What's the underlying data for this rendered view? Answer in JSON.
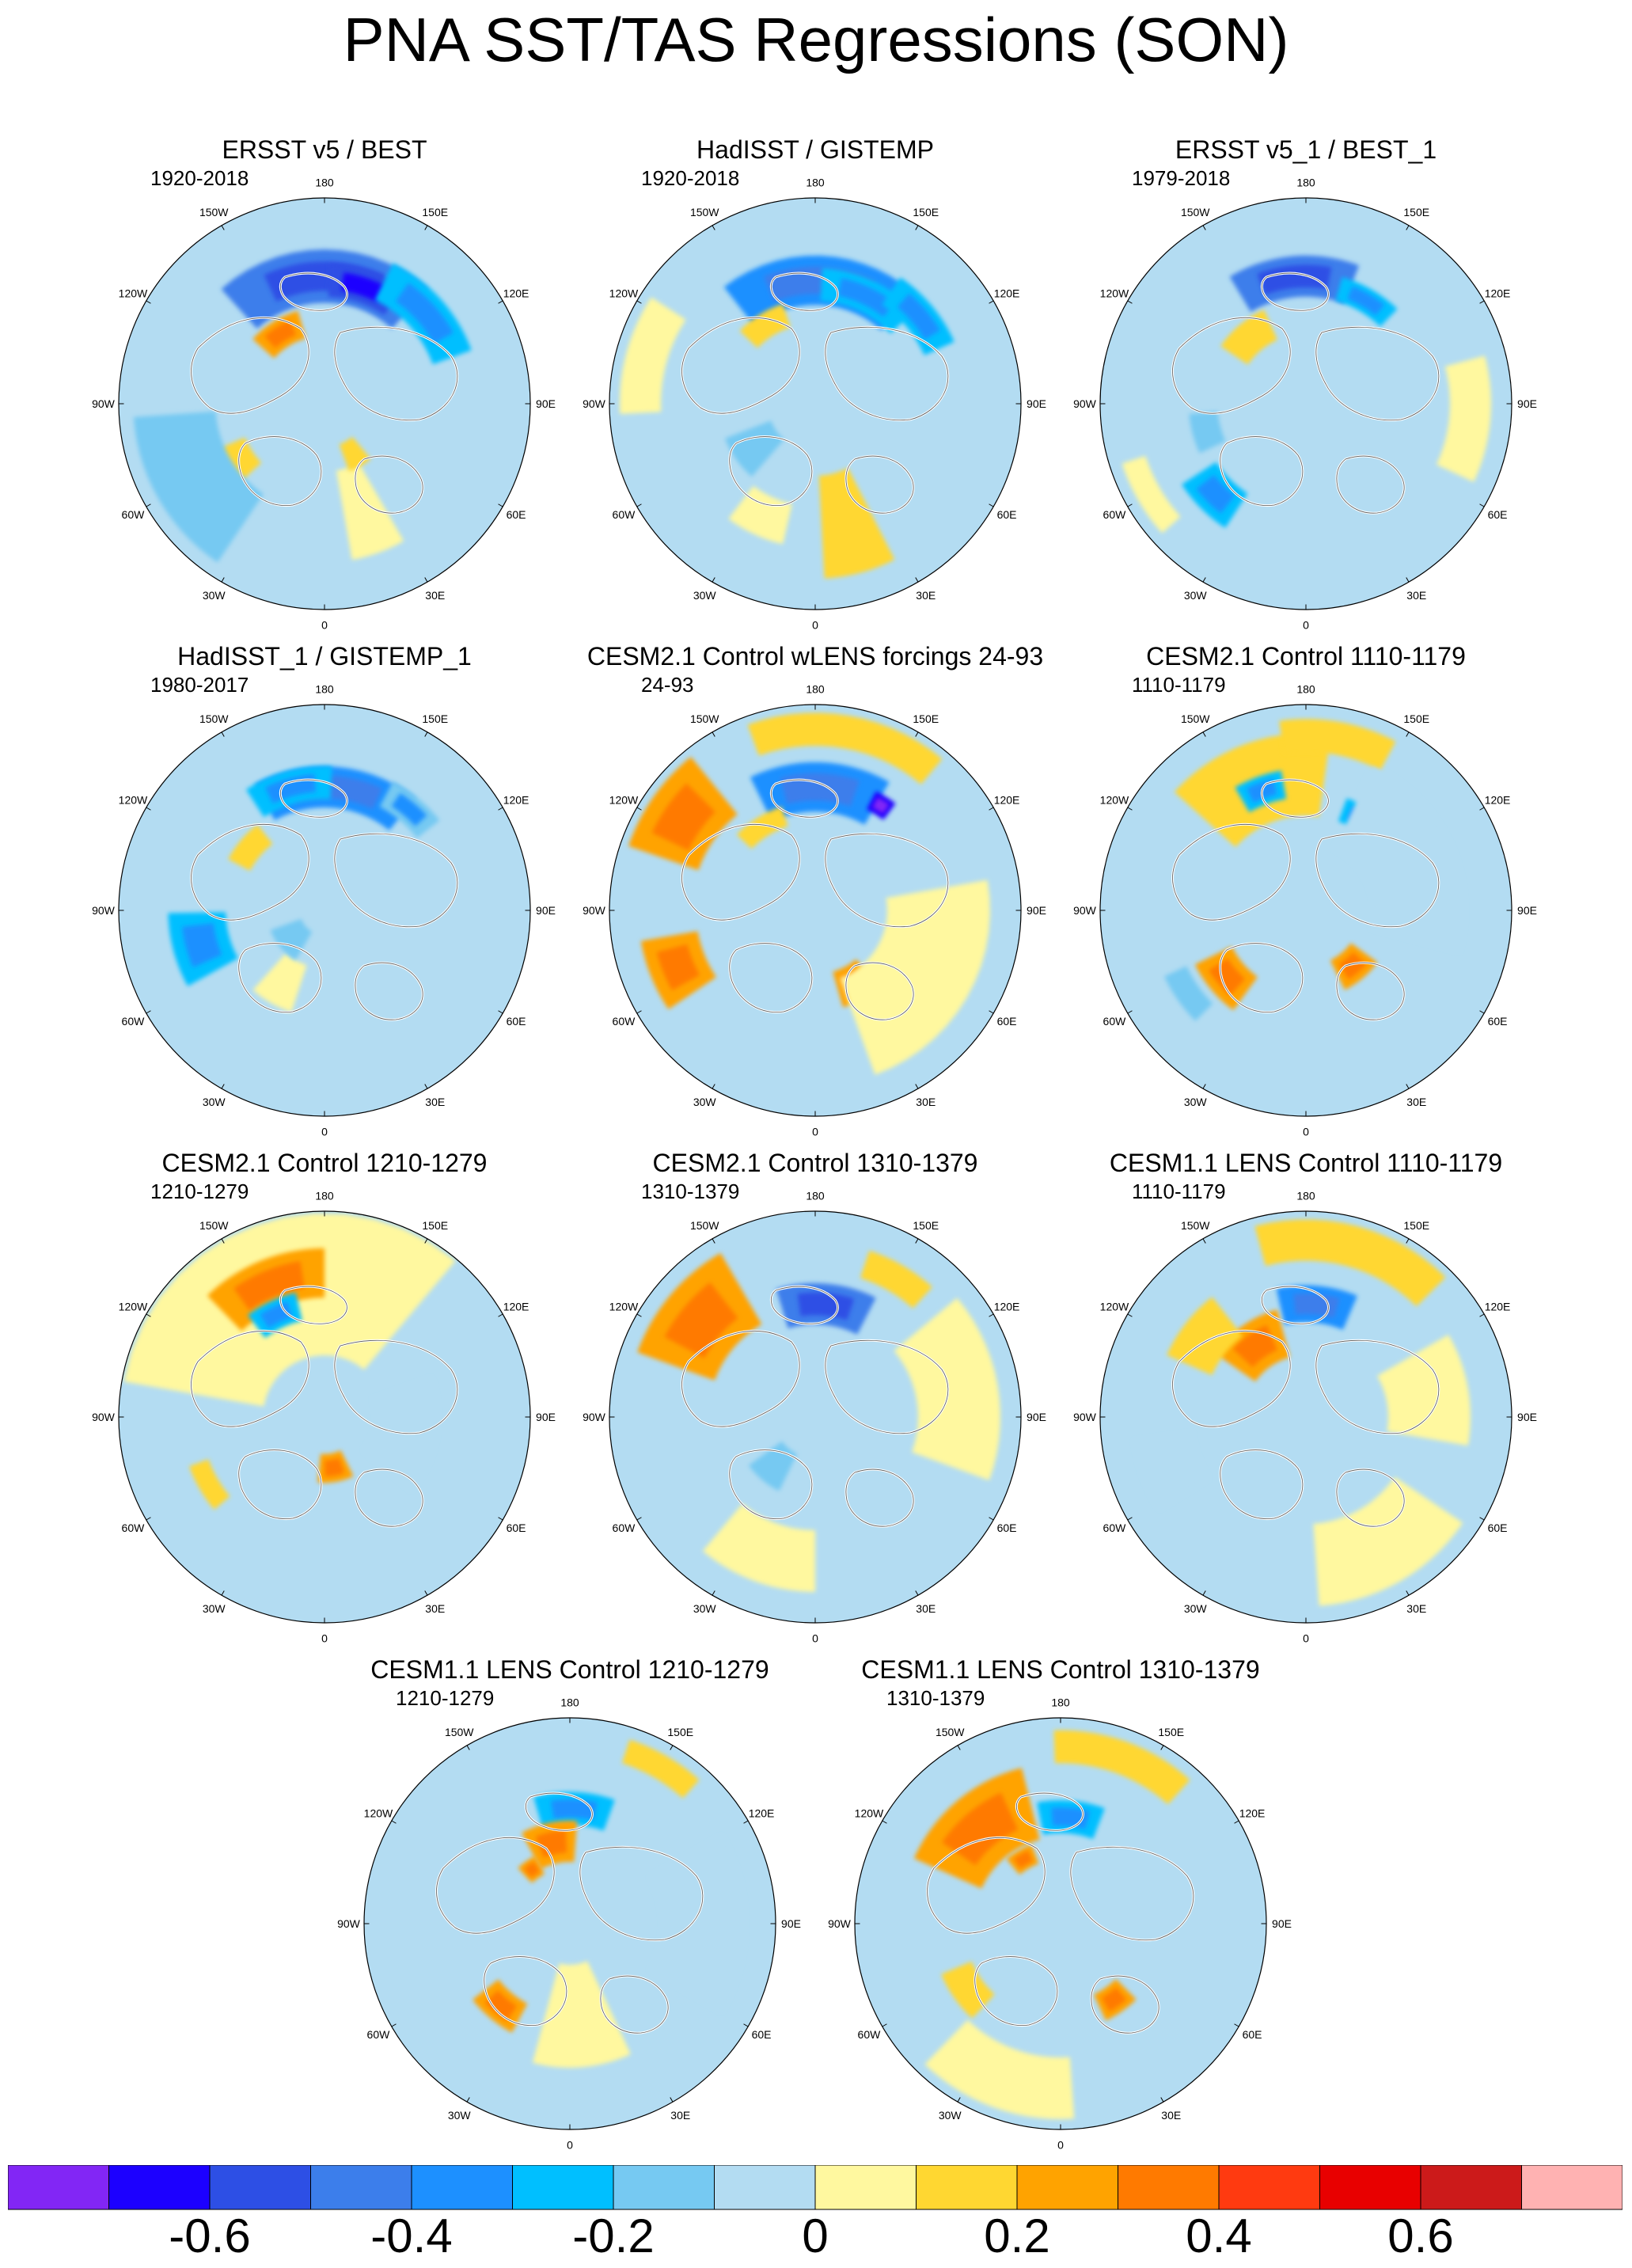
{
  "title": "PNA SST/TAS Regressions (SON)",
  "colors": {
    "ocean_base": "#B3DCF2",
    "land_coast": "#FFFFFF",
    "coastline": "#555555"
  },
  "chart_data": {
    "type": "heatmap",
    "projection": "north-polar-stereographic",
    "variable": "PNA SST/TAS regression coefficient",
    "season": "SON",
    "longitude_labels": [
      "180",
      "150E",
      "120E",
      "90E",
      "60E",
      "30E",
      "0",
      "30W",
      "60W",
      "90W",
      "120W",
      "150W"
    ],
    "colorbar": {
      "colors": [
        "#8226F5",
        "#1C00FF",
        "#2D4FE5",
        "#3C7EEB",
        "#1D90FF",
        "#00BFFF",
        "#76C9F2",
        "#B3DCF2",
        "#FFF89F",
        "#FFD731",
        "#FFA300",
        "#FF7A00",
        "#FF3A10",
        "#E80000",
        "#CC1A1A",
        "#FFB2B2"
      ],
      "levels": [
        -0.7,
        -0.6,
        -0.5,
        -0.4,
        -0.3,
        -0.2,
        -0.1,
        0,
        0.1,
        0.2,
        0.3,
        0.4,
        0.5,
        0.6,
        0.7
      ],
      "tick_labels": [
        "-0.6",
        "-0.4",
        "-0.2",
        "0",
        "0.2",
        "0.4",
        "0.6"
      ]
    },
    "panels": [
      {
        "title": "ERSST v5 / BEST",
        "period": "1920-2018",
        "features": [
          {
            "lon": 180,
            "r": 0.62,
            "lonw": 42,
            "rw": 0.13,
            "v": -0.45
          },
          {
            "lon": 162,
            "r": 0.6,
            "lonw": 16,
            "rw": 0.08,
            "v": -0.55
          },
          {
            "lon": 132,
            "r": 0.66,
            "lonw": 22,
            "rw": 0.1,
            "v": -0.3
          },
          {
            "lon": -148,
            "r": 0.4,
            "lonw": 16,
            "rw": 0.07,
            "v": 0.2
          },
          {
            "lon": -57,
            "r": 0.5,
            "lonw": 10,
            "rw": 0.08,
            "v": 0.18
          },
          {
            "lon": -60,
            "r": 0.73,
            "lonw": 26,
            "rw": 0.2,
            "v": -0.15
          },
          {
            "lon": 20,
            "r": 0.55,
            "lonw": 10,
            "rw": 0.22,
            "v": 0.08
          },
          {
            "lon": 30,
            "r": 0.28,
            "lonw": 10,
            "rw": 0.07,
            "v": 0.12
          }
        ]
      },
      {
        "title": "HadISST / GISTEMP",
        "period": "1920-2018",
        "features": [
          {
            "lon": 178,
            "r": 0.6,
            "lonw": 40,
            "rw": 0.12,
            "v": -0.35
          },
          {
            "lon": 155,
            "r": 0.58,
            "lonw": 22,
            "rw": 0.08,
            "v": -0.3
          },
          {
            "lon": 130,
            "r": 0.66,
            "lonw": 16,
            "rw": 0.08,
            "v": -0.28
          },
          {
            "lon": -148,
            "r": 0.45,
            "lonw": 14,
            "rw": 0.06,
            "v": 0.1
          },
          {
            "lon": 15,
            "r": 0.6,
            "lonw": 12,
            "rw": 0.25,
            "v": 0.1
          },
          {
            "lon": -25,
            "r": 0.6,
            "lonw": 12,
            "rw": 0.1,
            "v": 0.08
          },
          {
            "lon": -105,
            "r": 0.85,
            "lonw": 18,
            "rw": 0.1,
            "v": 0.06
          },
          {
            "lon": -55,
            "r": 0.35,
            "lonw": 14,
            "rw": 0.12,
            "v": -0.13
          }
        ]
      },
      {
        "title": "ERSST v5_1 / BEST_1",
        "period": "1979-2018",
        "features": [
          {
            "lon": -175,
            "r": 0.62,
            "lonw": 26,
            "rw": 0.1,
            "v": -0.45
          },
          {
            "lon": 150,
            "r": 0.58,
            "lonw": 14,
            "rw": 0.06,
            "v": -0.25
          },
          {
            "lon": -140,
            "r": 0.42,
            "lonw": 16,
            "rw": 0.08,
            "v": 0.1
          },
          {
            "lon": -45,
            "r": 0.62,
            "lonw": 12,
            "rw": 0.1,
            "v": -0.25
          },
          {
            "lon": -75,
            "r": 0.5,
            "lonw": 10,
            "rw": 0.07,
            "v": -0.14
          },
          {
            "lon": -60,
            "r": 0.88,
            "lonw": 12,
            "rw": 0.06,
            "v": 0.08
          },
          {
            "lon": 85,
            "r": 0.8,
            "lonw": 20,
            "rw": 0.1,
            "v": 0.06
          }
        ]
      },
      {
        "title": "HadISST_1 / GISTEMP_1",
        "period": "1980-2017",
        "features": [
          {
            "lon": 175,
            "r": 0.6,
            "lonw": 34,
            "rw": 0.1,
            "v": -0.35
          },
          {
            "lon": -165,
            "r": 0.62,
            "lonw": 18,
            "rw": 0.08,
            "v": -0.28
          },
          {
            "lon": 140,
            "r": 0.64,
            "lonw": 12,
            "rw": 0.07,
            "v": -0.2
          },
          {
            "lon": -130,
            "r": 0.47,
            "lonw": 12,
            "rw": 0.06,
            "v": 0.1
          },
          {
            "lon": -75,
            "r": 0.62,
            "lonw": 14,
            "rw": 0.14,
            "v": -0.22
          },
          {
            "lon": -30,
            "r": 0.4,
            "lonw": 12,
            "rw": 0.12,
            "v": 0.08
          },
          {
            "lon": -50,
            "r": 0.2,
            "lonw": 20,
            "rw": 0.08,
            "v": -0.14
          }
        ]
      },
      {
        "title": "CESM2.1 Control wLENS forcings 24-93",
        "period": "24-93",
        "features": [
          {
            "lon": 178,
            "r": 0.6,
            "lonw": 28,
            "rw": 0.12,
            "v": -0.4
          },
          {
            "lon": 148,
            "r": 0.6,
            "lonw": 5,
            "rw": 0.05,
            "v": -0.62
          },
          {
            "lon": -125,
            "r": 0.78,
            "lonw": 16,
            "rw": 0.18,
            "v": 0.22
          },
          {
            "lon": 170,
            "r": 0.88,
            "lonw": 30,
            "rw": 0.08,
            "v": 0.18
          },
          {
            "lon": -148,
            "r": 0.48,
            "lonw": 14,
            "rw": 0.05,
            "v": 0.18
          },
          {
            "lon": -68,
            "r": 0.72,
            "lonw": 12,
            "rw": 0.14,
            "v": 0.22
          },
          {
            "lon": 28,
            "r": 0.4,
            "lonw": 12,
            "rw": 0.09,
            "v": 0.22
          },
          {
            "lon": 60,
            "r": 0.6,
            "lonw": 40,
            "rw": 0.25,
            "v": 0.06
          }
        ]
      },
      {
        "title": "CESM2.1 Control 1110-1179",
        "period": "1110-1179",
        "features": [
          {
            "lon": -160,
            "r": 0.66,
            "lonw": 28,
            "rw": 0.2,
            "v": 0.18
          },
          {
            "lon": -160,
            "r": 0.62,
            "lonw": 10,
            "rw": 0.07,
            "v": -0.22
          },
          {
            "lon": 150,
            "r": 0.52,
            "lonw": 10,
            "rw": 0.06,
            "v": -0.25
          },
          {
            "lon": 170,
            "r": 0.85,
            "lonw": 18,
            "rw": 0.08,
            "v": 0.18
          },
          {
            "lon": 40,
            "r": 0.35,
            "lonw": 14,
            "rw": 0.08,
            "v": 0.28
          },
          {
            "lon": -50,
            "r": 0.5,
            "lonw": 14,
            "rw": 0.1,
            "v": 0.2
          },
          {
            "lon": -55,
            "r": 0.7,
            "lonw": 10,
            "rw": 0.06,
            "v": -0.13
          },
          {
            "lon": 115,
            "r": 0.55,
            "lonw": 40,
            "rw": 0.22,
            "v": -0.05
          }
        ]
      },
      {
        "title": "CESM2.1 Control 1210-1279",
        "period": "1210-1279",
        "features": [
          {
            "lon": -160,
            "r": 0.8,
            "lonw": 60,
            "rw": 0.5,
            "v": 0.06
          },
          {
            "lon": -158,
            "r": 0.7,
            "lonw": 22,
            "rw": 0.12,
            "v": 0.2
          },
          {
            "lon": -155,
            "r": 0.55,
            "lonw": 12,
            "rw": 0.07,
            "v": -0.22
          },
          {
            "lon": 10,
            "r": 0.25,
            "lonw": 16,
            "rw": 0.07,
            "v": 0.22
          },
          {
            "lon": -60,
            "r": 0.65,
            "lonw": 10,
            "rw": 0.05,
            "v": 0.18
          },
          {
            "lon": 80,
            "r": 0.4,
            "lonw": 30,
            "rw": 0.15,
            "v": -0.06
          }
        ]
      },
      {
        "title": "CESM2.1 Control 1310-1379",
        "period": "1310-1379",
        "features": [
          {
            "lon": 175,
            "r": 0.55,
            "lonw": 22,
            "rw": 0.1,
            "v": -0.45
          },
          {
            "lon": -130,
            "r": 0.72,
            "lonw": 20,
            "rw": 0.2,
            "v": 0.22
          },
          {
            "lon": 150,
            "r": 0.78,
            "lonw": 12,
            "rw": 0.07,
            "v": 0.12
          },
          {
            "lon": 100,
            "r": 0.7,
            "lonw": 30,
            "rw": 0.2,
            "v": 0.07
          },
          {
            "lon": -40,
            "r": 0.3,
            "lonw": 14,
            "rw": 0.1,
            "v": -0.14
          },
          {
            "lon": -20,
            "r": 0.7,
            "lonw": 20,
            "rw": 0.15,
            "v": 0.06
          }
        ]
      },
      {
        "title": "CESM1.1 LENS Control 1110-1179",
        "period": "1110-1179",
        "features": [
          {
            "lon": 175,
            "r": 0.55,
            "lonw": 18,
            "rw": 0.09,
            "v": -0.4
          },
          {
            "lon": -145,
            "r": 0.42,
            "lonw": 20,
            "rw": 0.12,
            "v": 0.2
          },
          {
            "lon": -128,
            "r": 0.62,
            "lonw": 14,
            "rw": 0.12,
            "v": 0.18
          },
          {
            "lon": 165,
            "r": 0.86,
            "lonw": 30,
            "rw": 0.1,
            "v": 0.1
          },
          {
            "lon": 100,
            "r": 0.6,
            "lonw": 20,
            "rw": 0.2,
            "v": 0.07
          },
          {
            "lon": -70,
            "r": 0.7,
            "lonw": 12,
            "rw": 0.14,
            "v": -0.08
          },
          {
            "lon": 30,
            "r": 0.72,
            "lonw": 26,
            "rw": 0.2,
            "v": 0.07
          }
        ]
      },
      {
        "title": "CESM1.1 LENS Control 1210-1279",
        "period": "1210-1279",
        "features": [
          {
            "lon": 178,
            "r": 0.56,
            "lonw": 18,
            "rw": 0.08,
            "v": -0.28
          },
          {
            "lon": -168,
            "r": 0.4,
            "lonw": 16,
            "rw": 0.1,
            "v": 0.2
          },
          {
            "lon": -145,
            "r": 0.32,
            "lonw": 8,
            "rw": 0.05,
            "v": 0.28
          },
          {
            "lon": -40,
            "r": 0.52,
            "lonw": 12,
            "rw": 0.08,
            "v": 0.2
          },
          {
            "lon": 5,
            "r": 0.45,
            "lonw": 20,
            "rw": 0.25,
            "v": 0.08
          },
          {
            "lon": 150,
            "r": 0.88,
            "lonw": 12,
            "rw": 0.06,
            "v": 0.14
          },
          {
            "lon": 90,
            "r": 0.65,
            "lonw": 30,
            "rw": 0.2,
            "v": -0.06
          }
        ]
      },
      {
        "title": "CESM1.1 LENS Control 1310-1379",
        "period": "1310-1379",
        "features": [
          {
            "lon": 175,
            "r": 0.52,
            "lonw": 16,
            "rw": 0.08,
            "v": -0.3
          },
          {
            "lon": -140,
            "r": 0.6,
            "lonw": 26,
            "rw": 0.18,
            "v": 0.22
          },
          {
            "lon": -150,
            "r": 0.36,
            "lonw": 10,
            "rw": 0.05,
            "v": 0.28
          },
          {
            "lon": 160,
            "r": 0.86,
            "lonw": 22,
            "rw": 0.08,
            "v": 0.12
          },
          {
            "lon": -55,
            "r": 0.55,
            "lonw": 12,
            "rw": 0.08,
            "v": 0.18
          },
          {
            "lon": 35,
            "r": 0.45,
            "lonw": 10,
            "rw": 0.07,
            "v": 0.22
          },
          {
            "lon": -20,
            "r": 0.8,
            "lonw": 24,
            "rw": 0.15,
            "v": 0.06
          }
        ]
      }
    ]
  }
}
